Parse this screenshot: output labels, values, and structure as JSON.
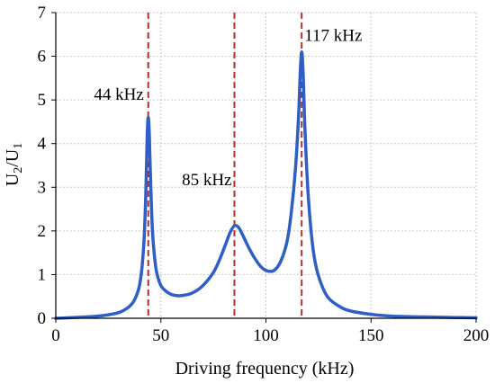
{
  "chart_data": {
    "type": "line",
    "title": "",
    "xlabel": "Driving  frequency (kHz)",
    "ylabel": "U2/U1",
    "ylabel_parts": {
      "base1": "U",
      "sub1": "2",
      "sep": "/U",
      "sub2": "1"
    },
    "xlim": [
      0,
      200
    ],
    "ylim": [
      0,
      7
    ],
    "xticks": [
      0,
      50,
      100,
      150,
      200
    ],
    "yticks": [
      0,
      1,
      2,
      3,
      4,
      5,
      6,
      7
    ],
    "grid": true,
    "legend": "none",
    "series": [
      {
        "color": "#2f5fc4",
        "points": [
          [
            0,
            0.0
          ],
          [
            10,
            0.02
          ],
          [
            20,
            0.05
          ],
          [
            25,
            0.08
          ],
          [
            30,
            0.13
          ],
          [
            33,
            0.2
          ],
          [
            35,
            0.27
          ],
          [
            37,
            0.38
          ],
          [
            39,
            0.6
          ],
          [
            40,
            0.8
          ],
          [
            41,
            1.15
          ],
          [
            42,
            1.8
          ],
          [
            42.8,
            2.8
          ],
          [
            43.5,
            4.2
          ],
          [
            44,
            4.6
          ],
          [
            44.5,
            4.2
          ],
          [
            45.2,
            3.0
          ],
          [
            46,
            2.0
          ],
          [
            47,
            1.4
          ],
          [
            48,
            1.05
          ],
          [
            50,
            0.75
          ],
          [
            53,
            0.6
          ],
          [
            56,
            0.53
          ],
          [
            60,
            0.52
          ],
          [
            65,
            0.58
          ],
          [
            70,
            0.75
          ],
          [
            75,
            1.05
          ],
          [
            78,
            1.35
          ],
          [
            81,
            1.72
          ],
          [
            83,
            1.97
          ],
          [
            85,
            2.12
          ],
          [
            87,
            2.08
          ],
          [
            89,
            1.9
          ],
          [
            92,
            1.6
          ],
          [
            95,
            1.35
          ],
          [
            98,
            1.16
          ],
          [
            101,
            1.08
          ],
          [
            104,
            1.1
          ],
          [
            107,
            1.3
          ],
          [
            110,
            1.75
          ],
          [
            112,
            2.4
          ],
          [
            114,
            3.4
          ],
          [
            115.5,
            4.6
          ],
          [
            116.3,
            5.6
          ],
          [
            117,
            6.1
          ],
          [
            117.7,
            5.6
          ],
          [
            118.5,
            4.4
          ],
          [
            120,
            2.9
          ],
          [
            122,
            1.75
          ],
          [
            124,
            1.15
          ],
          [
            127,
            0.7
          ],
          [
            130,
            0.45
          ],
          [
            135,
            0.27
          ],
          [
            140,
            0.17
          ],
          [
            150,
            0.09
          ],
          [
            160,
            0.05
          ],
          [
            175,
            0.03
          ],
          [
            200,
            0.01
          ]
        ]
      }
    ],
    "annotations": [
      {
        "x": 44,
        "label": "44 kHz",
        "color": "#b03030"
      },
      {
        "x": 85,
        "label": "85 kHz",
        "color": "#b03030"
      },
      {
        "x": 117,
        "label": "117 kHz",
        "color": "#b03030"
      }
    ]
  }
}
